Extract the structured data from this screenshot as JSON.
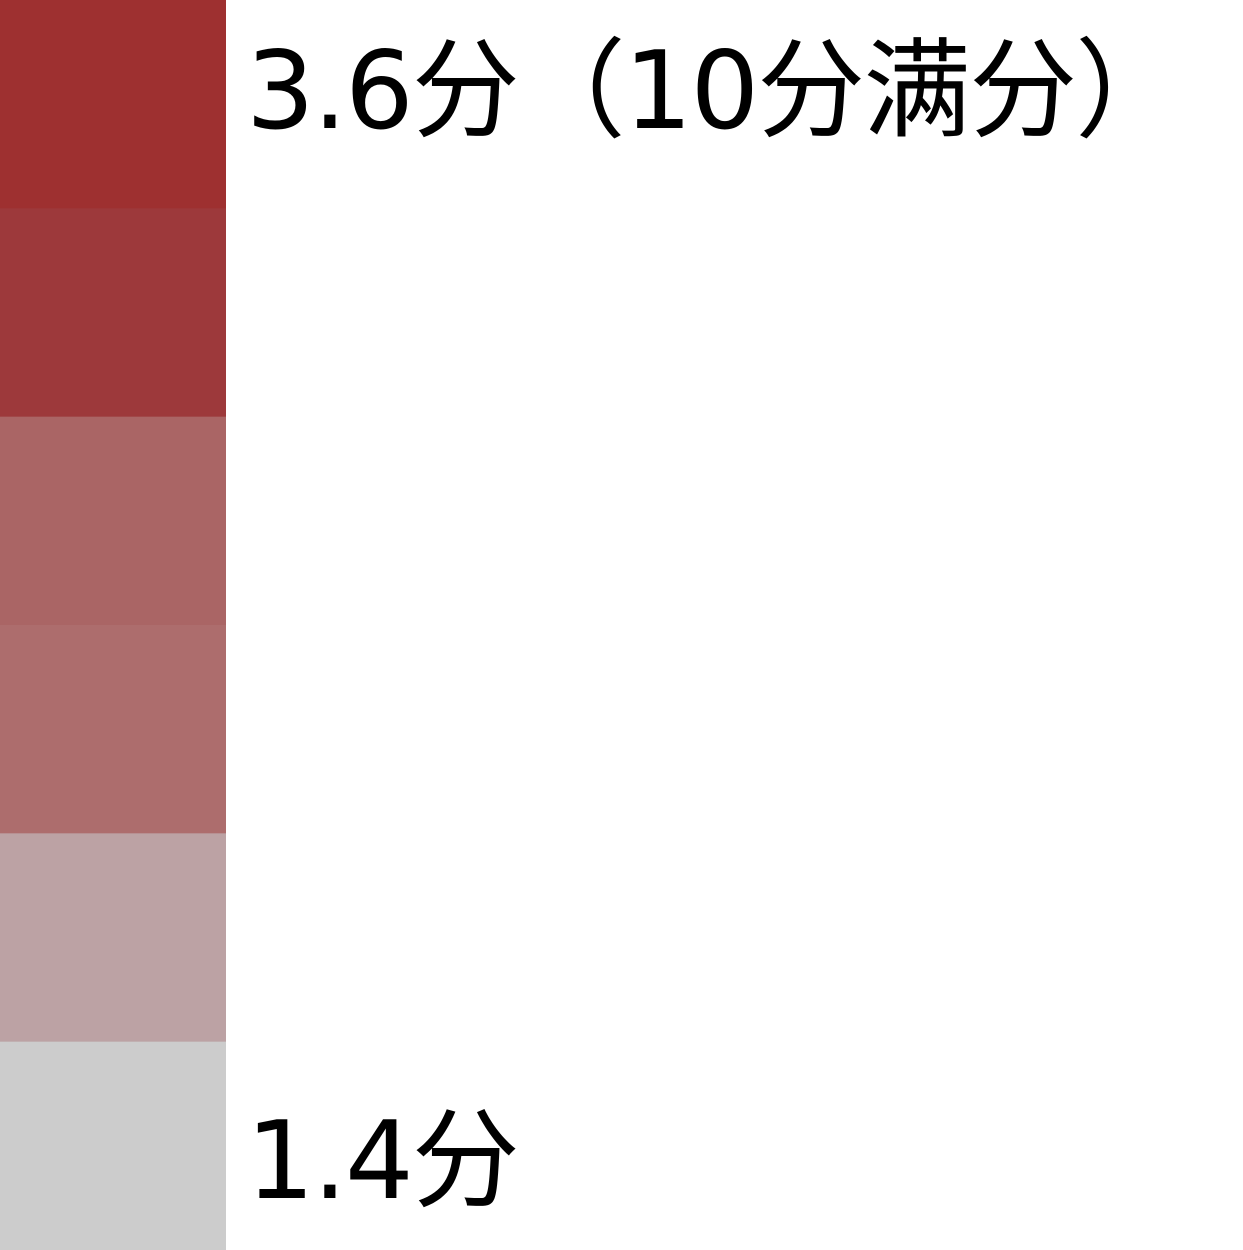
{
  "chart_data": {
    "type": "heatmap",
    "legend_type": "color-scale",
    "labels": {
      "max": "3.6分（10分满分）",
      "min": "1.4分"
    },
    "range": [
      1.4,
      3.6
    ],
    "full_scale": 10,
    "steps": [
      {
        "color": "#9e3030"
      },
      {
        "color": "#9d393b"
      },
      {
        "color": "#aa6565"
      },
      {
        "color": "#ad6d6d"
      },
      {
        "color": "#bca2a4"
      },
      {
        "color": "#cccccc"
      }
    ]
  }
}
